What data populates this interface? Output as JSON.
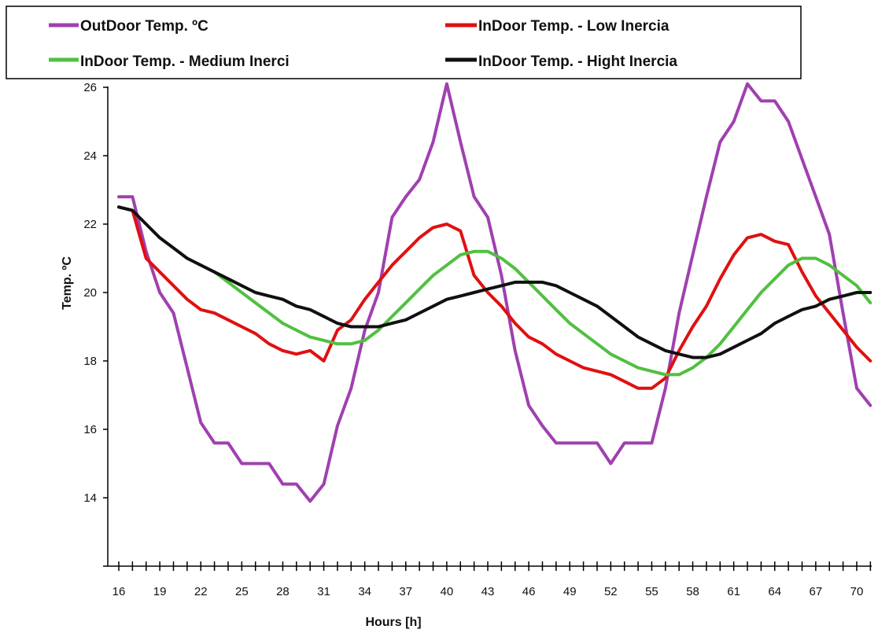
{
  "chart_data": {
    "type": "line",
    "xlabel": "Hours [h]",
    "ylabel": "Temp. ºC",
    "xlim": [
      16,
      71.5
    ],
    "ylim": [
      12,
      26
    ],
    "yticks": [
      14,
      16,
      18,
      20,
      22,
      24,
      26
    ],
    "xticks": [
      16,
      19,
      22,
      25,
      28,
      31,
      34,
      37,
      40,
      43,
      46,
      49,
      52,
      55,
      58,
      61,
      64,
      67,
      70
    ],
    "grid": false,
    "legend_position": "top",
    "series": [
      {
        "name": "OutDoor Temp. ºC",
        "color": "#a040b0",
        "points": [
          [
            16,
            22.8
          ],
          [
            17,
            22.8
          ],
          [
            18,
            21.2
          ],
          [
            19,
            20.0
          ],
          [
            20,
            19.4
          ],
          [
            21,
            17.8
          ],
          [
            22,
            16.2
          ],
          [
            23,
            15.6
          ],
          [
            24,
            15.6
          ],
          [
            25,
            15.0
          ],
          [
            26,
            15.0
          ],
          [
            27,
            15.0
          ],
          [
            28,
            14.4
          ],
          [
            29,
            14.4
          ],
          [
            30,
            13.9
          ],
          [
            31,
            14.4
          ],
          [
            32,
            16.1
          ],
          [
            33,
            17.2
          ],
          [
            34,
            18.9
          ],
          [
            35,
            20.0
          ],
          [
            36,
            22.2
          ],
          [
            37,
            22.8
          ],
          [
            38,
            23.3
          ],
          [
            39,
            24.4
          ],
          [
            40,
            26.1
          ],
          [
            41,
            24.4
          ],
          [
            42,
            22.8
          ],
          [
            43,
            22.2
          ],
          [
            44,
            20.5
          ],
          [
            45,
            18.3
          ],
          [
            46,
            16.7
          ],
          [
            47,
            16.1
          ],
          [
            48,
            15.6
          ],
          [
            49,
            15.6
          ],
          [
            50,
            15.6
          ],
          [
            51,
            15.6
          ],
          [
            52,
            15.0
          ],
          [
            53,
            15.6
          ],
          [
            54,
            15.6
          ],
          [
            55,
            15.6
          ],
          [
            56,
            17.2
          ],
          [
            57,
            19.4
          ],
          [
            58,
            21.1
          ],
          [
            59,
            22.8
          ],
          [
            60,
            24.4
          ],
          [
            61,
            25.0
          ],
          [
            62,
            26.1
          ],
          [
            63,
            25.6
          ],
          [
            64,
            25.6
          ],
          [
            65,
            25.0
          ],
          [
            66,
            23.9
          ],
          [
            67,
            22.8
          ],
          [
            68,
            21.7
          ],
          [
            69,
            19.4
          ],
          [
            70,
            17.2
          ],
          [
            71,
            16.7
          ]
        ]
      },
      {
        "name": "InDoor Temp. - Low Inercia",
        "color": "#e01010",
        "points": [
          [
            16,
            22.5
          ],
          [
            17,
            22.4
          ],
          [
            18,
            21.0
          ],
          [
            19,
            20.6
          ],
          [
            20,
            20.2
          ],
          [
            21,
            19.8
          ],
          [
            22,
            19.5
          ],
          [
            23,
            19.4
          ],
          [
            24,
            19.2
          ],
          [
            25,
            19.0
          ],
          [
            26,
            18.8
          ],
          [
            27,
            18.5
          ],
          [
            28,
            18.3
          ],
          [
            29,
            18.2
          ],
          [
            30,
            18.3
          ],
          [
            31,
            18.0
          ],
          [
            32,
            18.9
          ],
          [
            33,
            19.2
          ],
          [
            34,
            19.8
          ],
          [
            35,
            20.3
          ],
          [
            36,
            20.8
          ],
          [
            37,
            21.2
          ],
          [
            38,
            21.6
          ],
          [
            39,
            21.9
          ],
          [
            40,
            22.0
          ],
          [
            41,
            21.8
          ],
          [
            42,
            20.5
          ],
          [
            43,
            20.0
          ],
          [
            44,
            19.6
          ],
          [
            45,
            19.1
          ],
          [
            46,
            18.7
          ],
          [
            47,
            18.5
          ],
          [
            48,
            18.2
          ],
          [
            49,
            18.0
          ],
          [
            50,
            17.8
          ],
          [
            51,
            17.7
          ],
          [
            52,
            17.6
          ],
          [
            53,
            17.4
          ],
          [
            54,
            17.2
          ],
          [
            55,
            17.2
          ],
          [
            56,
            17.5
          ],
          [
            57,
            18.3
          ],
          [
            58,
            19.0
          ],
          [
            59,
            19.6
          ],
          [
            60,
            20.4
          ],
          [
            61,
            21.1
          ],
          [
            62,
            21.6
          ],
          [
            63,
            21.7
          ],
          [
            64,
            21.5
          ],
          [
            65,
            21.4
          ],
          [
            66,
            20.6
          ],
          [
            67,
            19.9
          ],
          [
            68,
            19.4
          ],
          [
            69,
            18.9
          ],
          [
            70,
            18.4
          ],
          [
            71,
            18.0
          ]
        ]
      },
      {
        "name": "InDoor Temp. - Medium Inerci",
        "color": "#50c040",
        "points": [
          [
            23,
            20.6
          ],
          [
            24,
            20.3
          ],
          [
            25,
            20.0
          ],
          [
            26,
            19.7
          ],
          [
            27,
            19.4
          ],
          [
            28,
            19.1
          ],
          [
            29,
            18.9
          ],
          [
            30,
            18.7
          ],
          [
            31,
            18.6
          ],
          [
            32,
            18.5
          ],
          [
            33,
            18.5
          ],
          [
            34,
            18.6
          ],
          [
            35,
            18.9
          ],
          [
            36,
            19.3
          ],
          [
            37,
            19.7
          ],
          [
            38,
            20.1
          ],
          [
            39,
            20.5
          ],
          [
            40,
            20.8
          ],
          [
            41,
            21.1
          ],
          [
            42,
            21.2
          ],
          [
            43,
            21.2
          ],
          [
            44,
            21.0
          ],
          [
            45,
            20.7
          ],
          [
            46,
            20.3
          ],
          [
            47,
            19.9
          ],
          [
            48,
            19.5
          ],
          [
            49,
            19.1
          ],
          [
            50,
            18.8
          ],
          [
            51,
            18.5
          ],
          [
            52,
            18.2
          ],
          [
            53,
            18.0
          ],
          [
            54,
            17.8
          ],
          [
            55,
            17.7
          ],
          [
            56,
            17.6
          ],
          [
            57,
            17.6
          ],
          [
            58,
            17.8
          ],
          [
            59,
            18.1
          ],
          [
            60,
            18.5
          ],
          [
            61,
            19.0
          ],
          [
            62,
            19.5
          ],
          [
            63,
            20.0
          ],
          [
            64,
            20.4
          ],
          [
            65,
            20.8
          ],
          [
            66,
            21.0
          ],
          [
            67,
            21.0
          ],
          [
            68,
            20.8
          ],
          [
            69,
            20.5
          ],
          [
            70,
            20.2
          ],
          [
            71,
            19.7
          ]
        ]
      },
      {
        "name": "InDoor Temp. - Hight  Inercia",
        "color": "#101010",
        "points": [
          [
            16,
            22.5
          ],
          [
            17,
            22.4
          ],
          [
            18,
            22.0
          ],
          [
            19,
            21.6
          ],
          [
            20,
            21.3
          ],
          [
            21,
            21.0
          ],
          [
            22,
            20.8
          ],
          [
            23,
            20.6
          ],
          [
            24,
            20.4
          ],
          [
            25,
            20.2
          ],
          [
            26,
            20.0
          ],
          [
            27,
            19.9
          ],
          [
            28,
            19.8
          ],
          [
            29,
            19.6
          ],
          [
            30,
            19.5
          ],
          [
            31,
            19.3
          ],
          [
            32,
            19.1
          ],
          [
            33,
            19.0
          ],
          [
            34,
            19.0
          ],
          [
            35,
            19.0
          ],
          [
            36,
            19.1
          ],
          [
            37,
            19.2
          ],
          [
            38,
            19.4
          ],
          [
            39,
            19.6
          ],
          [
            40,
            19.8
          ],
          [
            41,
            19.9
          ],
          [
            42,
            20.0
          ],
          [
            43,
            20.1
          ],
          [
            44,
            20.2
          ],
          [
            45,
            20.3
          ],
          [
            46,
            20.3
          ],
          [
            47,
            20.3
          ],
          [
            48,
            20.2
          ],
          [
            49,
            20.0
          ],
          [
            50,
            19.8
          ],
          [
            51,
            19.6
          ],
          [
            52,
            19.3
          ],
          [
            53,
            19.0
          ],
          [
            54,
            18.7
          ],
          [
            55,
            18.5
          ],
          [
            56,
            18.3
          ],
          [
            57,
            18.2
          ],
          [
            58,
            18.1
          ],
          [
            59,
            18.1
          ],
          [
            60,
            18.2
          ],
          [
            61,
            18.4
          ],
          [
            62,
            18.6
          ],
          [
            63,
            18.8
          ],
          [
            64,
            19.1
          ],
          [
            65,
            19.3
          ],
          [
            66,
            19.5
          ],
          [
            67,
            19.6
          ],
          [
            68,
            19.8
          ],
          [
            69,
            19.9
          ],
          [
            70,
            20.0
          ],
          [
            71,
            20.0
          ]
        ]
      }
    ]
  }
}
